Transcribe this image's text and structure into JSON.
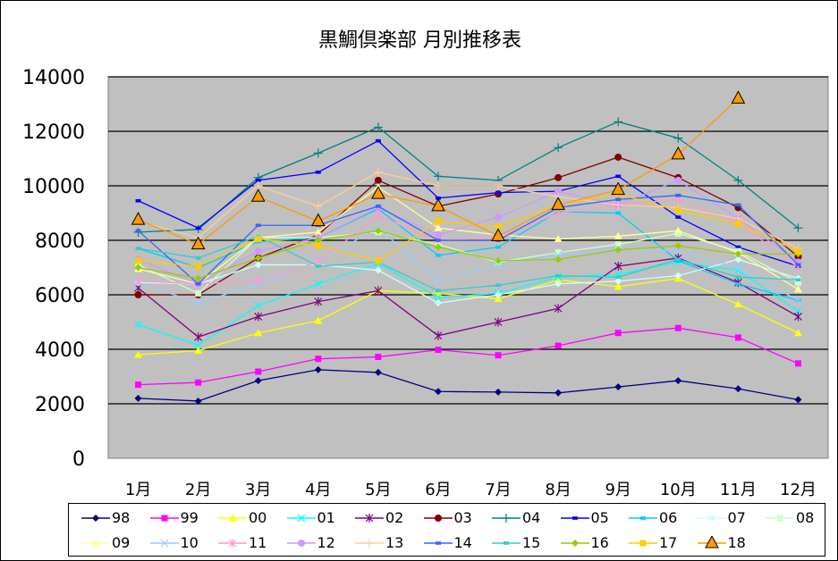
{
  "chart_data": {
    "type": "line",
    "title": "黒鯛倶楽部 月別推移表",
    "xlabel": "",
    "ylabel": "",
    "ylim": [
      0,
      14000
    ],
    "yticks": [
      "0",
      "2000",
      "4000",
      "6000",
      "8000",
      "10000",
      "12000",
      "14000"
    ],
    "grid": true,
    "legend_placement": "bottom",
    "categories": [
      "1月",
      "2月",
      "3月",
      "4月",
      "5月",
      "6月",
      "7月",
      "8月",
      "9月",
      "10月",
      "11月",
      "12月"
    ],
    "series": [
      {
        "name": "98",
        "color": "#000080",
        "marker": "diamond",
        "values": [
          2200,
          2100,
          2850,
          3250,
          3150,
          2450,
          2430,
          2400,
          2620,
          2850,
          2550,
          2150
        ]
      },
      {
        "name": "99",
        "color": "#FF00FF",
        "marker": "square",
        "values": [
          2700,
          2780,
          3180,
          3650,
          3720,
          3980,
          3780,
          4130,
          4600,
          4780,
          4430,
          3480
        ]
      },
      {
        "name": "00",
        "color": "#FFFF00",
        "marker": "triangle",
        "values": [
          3800,
          3950,
          4600,
          5050,
          6150,
          6050,
          5850,
          6550,
          6300,
          6600,
          5650,
          4600
        ]
      },
      {
        "name": "01",
        "color": "#00FFFF",
        "marker": "x",
        "values": [
          4900,
          4150,
          5600,
          6400,
          7150,
          5900,
          6050,
          6650,
          6750,
          7200,
          6900,
          5400
        ]
      },
      {
        "name": "02",
        "color": "#800080",
        "marker": "star",
        "values": [
          6250,
          4450,
          5200,
          5750,
          6150,
          4500,
          5000,
          5500,
          7050,
          7350,
          6450,
          5200
        ]
      },
      {
        "name": "03",
        "color": "#800000",
        "marker": "circle",
        "values": [
          6000,
          6000,
          7350,
          8200,
          10200,
          9250,
          9700,
          10300,
          11050,
          10300,
          9200,
          7400
        ]
      },
      {
        "name": "04",
        "color": "#008080",
        "marker": "plus",
        "values": [
          8300,
          8400,
          10300,
          11200,
          12150,
          10350,
          10200,
          11400,
          12350,
          11750,
          10200,
          8450
        ]
      },
      {
        "name": "05",
        "color": "#0000FF",
        "marker": "dash",
        "values": [
          9450,
          8450,
          10200,
          10500,
          11650,
          9550,
          9750,
          9800,
          10350,
          8850,
          7750,
          7050
        ]
      },
      {
        "name": "06",
        "color": "#00CCFF",
        "marker": "dash",
        "values": [
          7700,
          7000,
          7950,
          8100,
          9150,
          7450,
          7750,
          9050,
          9000,
          7250,
          6400,
          5800
        ]
      },
      {
        "name": "07",
        "color": "#CCFFFF",
        "marker": "diamond",
        "values": [
          6450,
          6400,
          7100,
          7100,
          6900,
          5700,
          6000,
          6400,
          6500,
          6700,
          7300,
          6600
        ]
      },
      {
        "name": "08",
        "color": "#CCFFCC",
        "marker": "square",
        "values": [
          7100,
          6050,
          8100,
          8100,
          8300,
          7850,
          7200,
          7550,
          7850,
          8250,
          7600,
          6450
        ]
      },
      {
        "name": "09",
        "color": "#FFFF99",
        "marker": "triangle",
        "values": [
          6950,
          6400,
          8100,
          8300,
          9950,
          8450,
          8200,
          8050,
          8150,
          8350,
          7550,
          6200
        ]
      },
      {
        "name": "10",
        "color": "#99CCFF",
        "marker": "x",
        "values": [
          6450,
          5700,
          6400,
          7250,
          8450,
          6550,
          7050,
          7450,
          7700,
          7600,
          7000,
          5800
        ]
      },
      {
        "name": "11",
        "color": "#FF99CC",
        "marker": "star",
        "values": [
          6500,
          6400,
          6500,
          7200,
          8900,
          8000,
          8100,
          9000,
          9300,
          9500,
          8650,
          7000
        ]
      },
      {
        "name": "12",
        "color": "#CC99FF",
        "marker": "circle",
        "values": [
          7300,
          6400,
          7600,
          8100,
          9200,
          8200,
          8850,
          9800,
          9300,
          10200,
          8800,
          7200
        ]
      },
      {
        "name": "13",
        "color": "#FFCC99",
        "marker": "plus",
        "values": [
          8700,
          8100,
          10000,
          9250,
          10500,
          10000,
          10000,
          9600,
          9300,
          9200,
          8800,
          7700
        ]
      },
      {
        "name": "14",
        "color": "#3366FF",
        "marker": "dash",
        "values": [
          8350,
          6400,
          8550,
          8550,
          9250,
          8000,
          8000,
          9200,
          9500,
          9650,
          9300,
          7100
        ]
      },
      {
        "name": "15",
        "color": "#33CCCC",
        "marker": "dash",
        "values": [
          7700,
          7350,
          8150,
          7050,
          7200,
          6150,
          6350,
          6700,
          6650,
          7300,
          6650,
          6550
        ]
      },
      {
        "name": "16",
        "color": "#99CC00",
        "marker": "diamond",
        "values": [
          7000,
          6600,
          7350,
          8000,
          8350,
          7750,
          7250,
          7300,
          7650,
          7800,
          7500,
          7500
        ]
      },
      {
        "name": "17",
        "color": "#FFCC00",
        "marker": "square",
        "values": [
          7250,
          7050,
          8050,
          7800,
          7250,
          8700,
          8500,
          9300,
          9700,
          9100,
          8600,
          7600
        ]
      },
      {
        "name": "18",
        "color": "#FF9900",
        "marker": "bigtriangle",
        "values": [
          8750,
          7850,
          9600,
          8700,
          9700,
          9250,
          8150,
          9300,
          9850,
          11150,
          13200,
          null
        ]
      }
    ]
  }
}
